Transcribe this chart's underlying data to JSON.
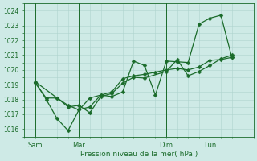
{
  "bg_color": "#ceeae6",
  "grid_color": "#aed4ce",
  "line_color": "#1a6b2a",
  "xlabel": "Pression niveau de la mer( hPa )",
  "ylim": [
    1015.5,
    1024.5
  ],
  "yticks": [
    1016,
    1017,
    1018,
    1019,
    1020,
    1021,
    1022,
    1023,
    1024
  ],
  "xtick_labels": [
    "Sam",
    "Mar",
    "Dim",
    "Lun"
  ],
  "xtick_positions": [
    0.5,
    2.5,
    6.5,
    8.5
  ],
  "vline_positions": [
    0.5,
    2.5,
    6.5,
    8.5
  ],
  "xlim": [
    0,
    10.5
  ],
  "series1": {
    "x": [
      0.5,
      1.0,
      1.5,
      2.0,
      2.5,
      3.0,
      3.5,
      4.0,
      4.5,
      5.0,
      5.5,
      6.0,
      6.5,
      7.0,
      7.5,
      8.0,
      8.5,
      9.0,
      9.5
    ],
    "y": [
      1019.2,
      1018.0,
      1016.7,
      1015.9,
      1017.3,
      1017.5,
      1018.3,
      1018.2,
      1018.5,
      1020.6,
      1020.3,
      1018.3,
      1020.6,
      1020.55,
      1020.5,
      1023.1,
      1023.5,
      1023.7,
      1020.85
    ]
  },
  "series2": {
    "x": [
      0.5,
      1.0,
      1.5,
      2.0,
      2.5,
      3.0,
      3.5,
      4.0,
      4.5,
      5.0,
      5.5,
      6.0,
      6.5,
      7.0,
      7.5,
      8.0,
      8.5,
      9.0,
      9.5
    ],
    "y": [
      1019.1,
      1018.1,
      1018.1,
      1017.6,
      1017.3,
      1018.1,
      1018.3,
      1018.5,
      1019.4,
      1019.6,
      1019.7,
      1019.85,
      1020.0,
      1020.1,
      1020.0,
      1020.2,
      1020.65,
      1020.7,
      1020.85
    ]
  },
  "series3": {
    "x": [
      0.5,
      1.5,
      2.0,
      2.5,
      3.0,
      3.5,
      4.0,
      4.5,
      5.0,
      5.5,
      6.5,
      7.0,
      7.5,
      8.0,
      8.5,
      9.0,
      9.5
    ],
    "y": [
      1019.2,
      1018.1,
      1017.5,
      1017.6,
      1017.1,
      1018.2,
      1018.4,
      1019.1,
      1019.5,
      1019.45,
      1019.9,
      1020.7,
      1019.6,
      1019.9,
      1020.3,
      1020.75,
      1021.0
    ]
  }
}
